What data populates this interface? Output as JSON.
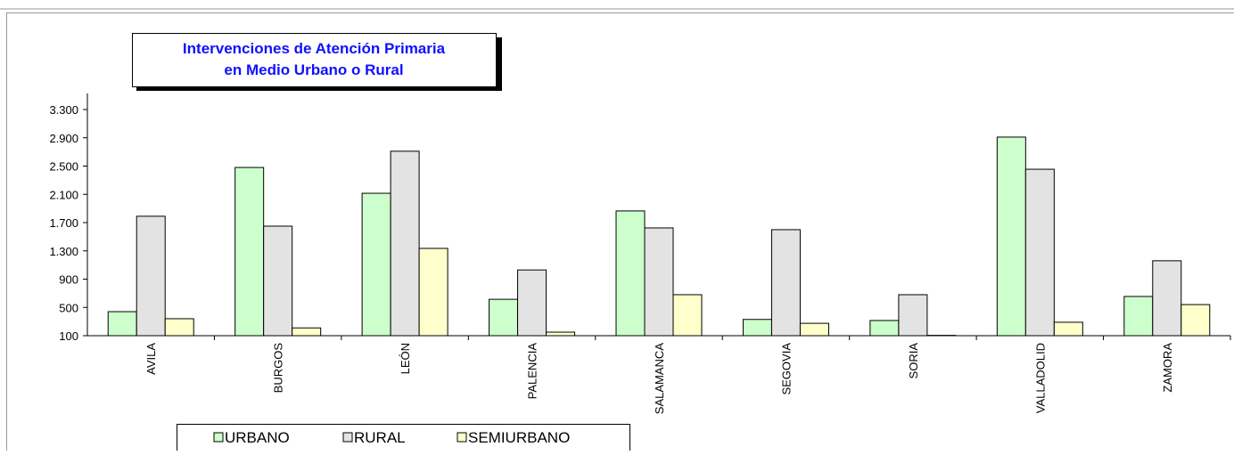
{
  "chart_data": {
    "type": "bar",
    "title": [
      "Intervenciones de Atención Primaria",
      "en Medio Urbano o Rural"
    ],
    "categories": [
      "AVILA",
      "BURGOS",
      "LEÓN",
      "PALENCIA",
      "SALAMANCA",
      "SEGOVIA",
      "SORIA",
      "VALLADOLID",
      "ZAMORA"
    ],
    "series": [
      {
        "name": "URBANO",
        "color": "#ccffcc",
        "values": [
          440,
          2480,
          2115,
          615,
          1865,
          330,
          315,
          2910,
          655
        ]
      },
      {
        "name": "RURAL",
        "color": "#e3e3e3",
        "values": [
          1790,
          1650,
          2710,
          1030,
          1625,
          1600,
          680,
          2455,
          1160
        ]
      },
      {
        "name": "SEMIURBANO",
        "color": "#ffffcc",
        "values": [
          340,
          210,
          1335,
          150,
          680,
          275,
          105,
          290,
          540
        ]
      }
    ],
    "ylim": [
      100,
      3300
    ],
    "yticks": [
      100,
      500,
      900,
      {
        "value": 1300,
        "label": "1.300"
      },
      {
        "value": 1700,
        "label": "1.700"
      },
      {
        "value": 2100,
        "label": "2.100"
      },
      {
        "value": 2500,
        "label": "2.500"
      },
      {
        "value": 2900,
        "label": "2.900"
      },
      {
        "value": 3300,
        "label": "3.300"
      }
    ],
    "grid": false
  }
}
